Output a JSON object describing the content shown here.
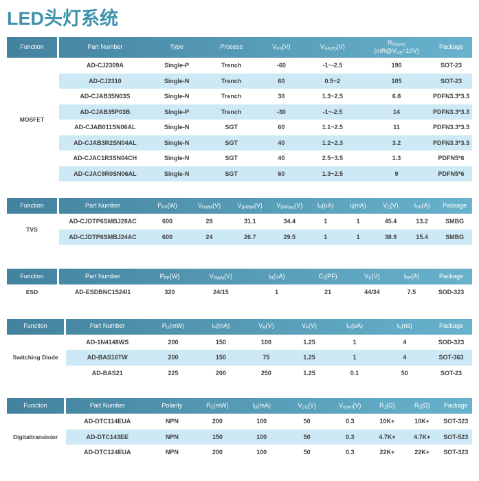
{
  "title": "LED头灯系统",
  "colors": {
    "title": "#3d92aa",
    "header_gradient_left": "#43829e",
    "header_gradient_right": "#68b2cd",
    "row_stripe": "#cde9f5",
    "header_text": "#ffffff",
    "body_text": "#3f3f3f"
  },
  "tables": [
    {
      "function_label": "MOSFET",
      "headers": [
        "Function",
        "Part Number",
        "Type",
        "Process",
        "V_{DS}(V)",
        "V_{GS(th)}(V)",
        "R_{DS(on)}\n(mR@V_{GS}=10V)",
        "Package"
      ],
      "rows": [
        [
          "AD-CJ2309A",
          "Single-P",
          "Trench",
          "-60",
          "-1~-2.5",
          "190",
          "SOT-23"
        ],
        [
          "AD-CJ2310",
          "Single-N",
          "Trench",
          "60",
          "0.5~2",
          "105",
          "SOT-23"
        ],
        [
          "AD-CJAB35N03S",
          "Single-N",
          "Trench",
          "30",
          "1.3~2.5",
          "6.8",
          "PDFN3.3*3.3"
        ],
        [
          "AD-CJAB35P03B",
          "Single-P",
          "Trench",
          "-30",
          "-1~-2.5",
          "14",
          "PDFN3.3*3.3"
        ],
        [
          "AD-CJAB011SN06AL",
          "Single-N",
          "SGT",
          "60",
          "1.1~2.5",
          "11",
          "PDFN3.3*3.3"
        ],
        [
          "AD-CJAB3R2SN04AL",
          "Single-N",
          "SGT",
          "40",
          "1.2~2.3",
          "3.2",
          "PDFN3.3*3.3"
        ],
        [
          "AD-CJAC1R3SN04CH",
          "Single-N",
          "SGT",
          "40",
          "2.5~3.5",
          "1.3",
          "PDFN5*6"
        ],
        [
          "AD-CJAC9R0SN06AL",
          "Single-N",
          "SGT",
          "60",
          "1.3~2.5",
          "9",
          "PDFN5*6"
        ]
      ]
    },
    {
      "function_label": "TVS",
      "headers": [
        "Function",
        "Part Number",
        "P_{PP}(W)",
        "V_{RWM}(V)",
        "V_{BRMin}(V)",
        "V_{BRMax}(V)",
        "I_{R}(uA)",
        "i_{t}(mA)",
        "V_{C}(V)",
        "I_{PP}(A)",
        "Package"
      ],
      "rows": [
        [
          "AD-CJDTP6SMBJ28AC",
          "600",
          "28",
          "31.1",
          "34.4",
          "1",
          "1",
          "45.4",
          "13.2",
          "SMBG"
        ],
        [
          "AD-CJDTP6SMBJ24AC",
          "600",
          "24",
          "26.7",
          "29.5",
          "1",
          "1",
          "38.9",
          "15.4",
          "SMBG"
        ]
      ]
    },
    {
      "function_label": "ESD",
      "headers": [
        "Function",
        "Part Number",
        "P_{PP}(W)",
        "V_{RWM}(V)",
        "I_{R}(uA)",
        "C_{J}(PF)",
        "V_{C}(V)",
        "I_{PP}(A)",
        "Package"
      ],
      "rows": [
        [
          "AD-ESDBNC1524I1",
          "320",
          "24/15",
          "1",
          "21",
          "44/34",
          "7.5",
          "SOD-323"
        ]
      ]
    },
    {
      "function_label": "Switching Diode",
      "headers": [
        "Function",
        "Part Number",
        "P_{D}(mW)",
        "I_{F}(mA)",
        "V_{R}(V)",
        "V_{F}(V)",
        "I_{R}(uA)",
        "t_{rr}(ns)",
        "Package"
      ],
      "rows": [
        [
          "AD-1N4148WS",
          "200",
          "150",
          "100",
          "1.25",
          "1",
          "4",
          "SOD-323"
        ],
        [
          "AD-BAS16TW",
          "200",
          "150",
          "75",
          "1.25",
          "1",
          "4",
          "SOT-363"
        ],
        [
          "AD-BAS21",
          "225",
          "200",
          "250",
          "1.25",
          "0.1",
          "50",
          "SOT-23"
        ]
      ]
    },
    {
      "function_label": "Digitaltransistor",
      "headers": [
        "Function",
        "Part Number",
        "Polarity",
        "P_{C}(mW)",
        "I_{O}(mA)",
        "V_{CC}(V)",
        "V_{o(on)}(V)",
        "R_{1}(Ω)",
        "R_{2}(Ω)",
        "Package"
      ],
      "rows": [
        [
          "AD-DTC114EUA",
          "NPN",
          "200",
          "100",
          "50",
          "0.3",
          "10K+",
          "10K+",
          "SOT-323"
        ],
        [
          "AD-DTC143EE",
          "NPN",
          "150",
          "100",
          "50",
          "0.3",
          "4.7K+",
          "4.7K+",
          "SOT-523"
        ],
        [
          "AD-DTC124EUA",
          "NPN",
          "200",
          "100",
          "50",
          "0.3",
          "22K+",
          "22K+",
          "SOT-323"
        ]
      ]
    }
  ]
}
